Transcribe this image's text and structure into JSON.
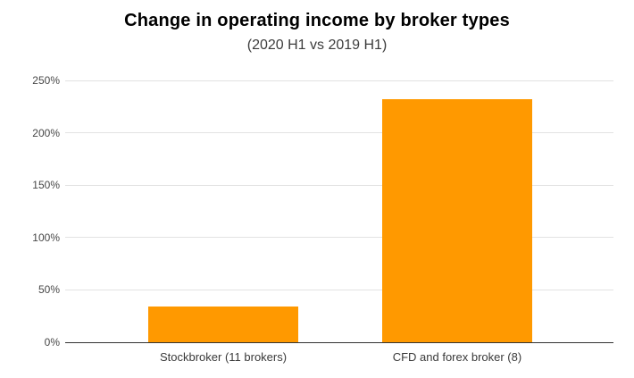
{
  "chart_data": {
    "type": "bar",
    "title": "Change in operating income by broker types",
    "subtitle": "(2020 H1 vs 2019 H1)",
    "categories": [
      "Stockbroker (11 brokers)",
      "CFD and forex broker (8)"
    ],
    "values": [
      34,
      232
    ],
    "xlabel": "",
    "ylabel": "",
    "ylim": [
      0,
      250
    ],
    "yticks": [
      {
        "label": "0%",
        "value": 0
      },
      {
        "label": "50%",
        "value": 50
      },
      {
        "label": "100%",
        "value": 100
      },
      {
        "label": "150%",
        "value": 150
      },
      {
        "label": "200%",
        "value": 200
      },
      {
        "label": "250%",
        "value": 250
      }
    ],
    "grid": "horizontal",
    "legend": "none",
    "colors": {
      "bar": "#ff9900",
      "gridline": "#e2e2e2",
      "baseline": "#333333",
      "title_text": "#000000",
      "subtitle_text": "#3c3c3c",
      "axis_text": "#474747"
    }
  }
}
